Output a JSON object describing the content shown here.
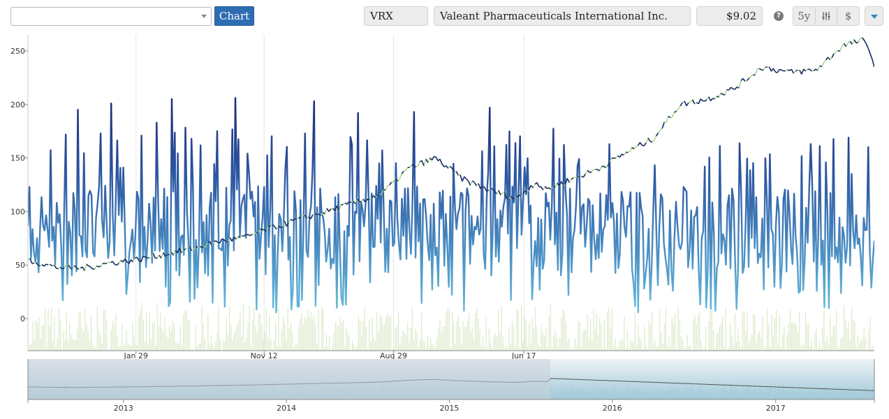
{
  "toolbar": {
    "select_value": "",
    "chart_button": "Chart",
    "symbol": "VRX",
    "company": "Valeant Pharmaceuticals International Inc.",
    "price": "$9.02",
    "help": "?",
    "range_button": "5y",
    "settings_icon": "sliders-icon",
    "currency_button": "$",
    "menu_icon": "caret-down-icon"
  },
  "colors": {
    "accent": "#2e6db3",
    "price_line": "#1a2a6c",
    "price_up_line": "#9fd47c",
    "volume_bars": "#dbe9c8",
    "navigator_fill": "#a9cbd8",
    "navigator_mask": "#c8d0da"
  },
  "chart_data": {
    "type": "line",
    "title": "",
    "xlabel": "",
    "ylabel": "",
    "ylim": [
      -30,
      265
    ],
    "y_ticks": [
      0,
      50,
      100,
      150,
      200,
      250
    ],
    "x_tick_labels": [
      "Jan 29",
      "Nov 12",
      "Aug 29",
      "Jun 17"
    ],
    "x_range": [
      "2012-06-01",
      "2017-08-10"
    ],
    "x_tick_dates": [
      "2013-01-29",
      "2013-11-12",
      "2014-08-29",
      "2015-06-17"
    ],
    "grid": true,
    "series": [
      {
        "role": "price",
        "dates": [
          "2012-06-01",
          "2012-08-01",
          "2012-10-01",
          "2012-12-01",
          "2013-02-01",
          "2013-04-01",
          "2013-06-01",
          "2013-08-01",
          "2013-10-01",
          "2013-12-01",
          "2014-02-01",
          "2014-04-01",
          "2014-06-01",
          "2014-08-01",
          "2014-10-01",
          "2014-12-01",
          "2015-02-01",
          "2015-04-01",
          "2015-06-01",
          "2015-07-15",
          "2015-08-01",
          "2015-10-01",
          "2015-12-01",
          "2016-02-01",
          "2016-04-01",
          "2016-06-01",
          "2016-08-01",
          "2016-10-01",
          "2016-12-01",
          "2017-02-01",
          "2017-04-01",
          "2017-06-01",
          "2017-07-15",
          "2017-08-01",
          "2017-08-10"
        ],
        "values": [
          55,
          48,
          47,
          52,
          55,
          60,
          65,
          72,
          76,
          85,
          93,
          100,
          108,
          116,
          140,
          150,
          130,
          120,
          112,
          128,
          120,
          130,
          140,
          155,
          168,
          200,
          205,
          215,
          235,
          230,
          232,
          255,
          260,
          250,
          235
        ]
      },
      {
        "role": "oscillator",
        "start": "2012-06-01",
        "end": "2017-08-10",
        "min": 0,
        "max": 206,
        "peaks": [
          {
            "date": "2012-09-20",
            "value": 195
          },
          {
            "date": "2012-12-05",
            "value": 201
          },
          {
            "date": "2013-03-15",
            "value": 183
          },
          {
            "date": "2013-04-20",
            "value": 205
          },
          {
            "date": "2013-09-10",
            "value": 206
          },
          {
            "date": "2014-03-05",
            "value": 203
          },
          {
            "date": "2014-06-10",
            "value": 192
          },
          {
            "date": "2014-10-15",
            "value": 193
          },
          {
            "date": "2015-04-01",
            "value": 197
          },
          {
            "date": "2017-03-20",
            "value": 163
          }
        ]
      },
      {
        "role": "volume",
        "start": "2012-06-01",
        "end": "2017-08-10",
        "relative_max": 100
      }
    ],
    "navigator": {
      "year_labels": [
        "2013",
        "2014",
        "2015",
        "2016",
        "2017"
      ],
      "year_dates": [
        "2013-01-01",
        "2014-01-01",
        "2015-01-01",
        "2016-01-01",
        "2017-01-01"
      ],
      "selected_range": [
        "2012-06-01",
        "2015-08-15"
      ]
    }
  }
}
